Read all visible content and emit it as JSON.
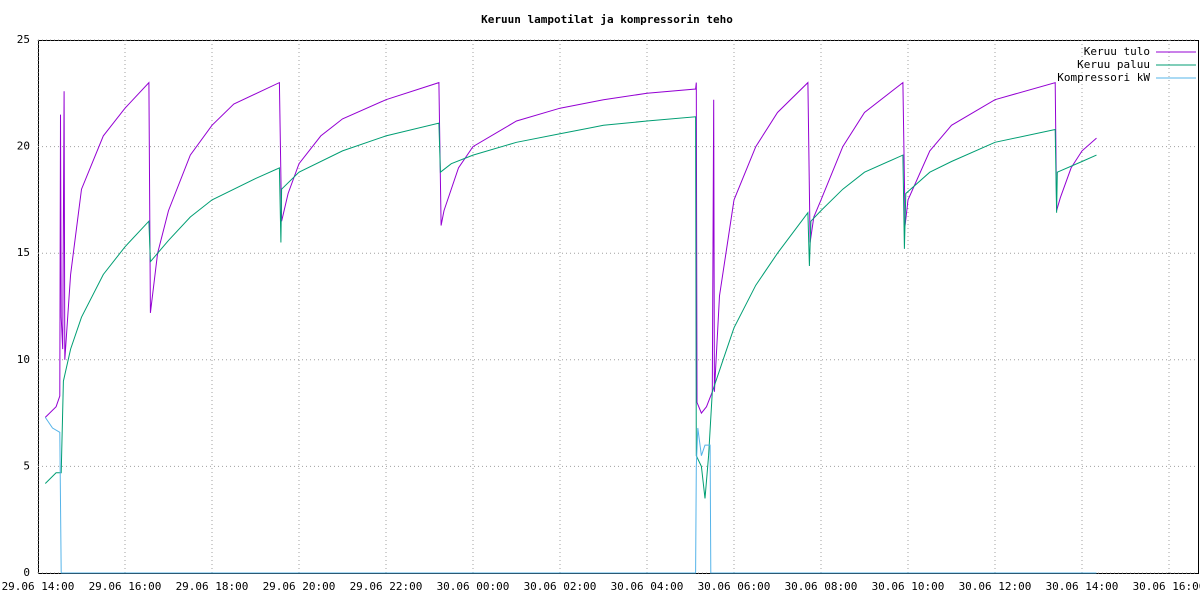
{
  "chart_data": {
    "type": "line",
    "title": "Keruun lampotilat ja kompressorin teho",
    "xlim": [
      "29.06 14:00",
      "30.06 16:40"
    ],
    "xticks": [
      "29.06 14:00",
      "29.06 16:00",
      "29.06 18:00",
      "29.06 20:00",
      "29.06 22:00",
      "30.06 00:00",
      "30.06 02:00",
      "30.06 04:00",
      "30.06 06:00",
      "30.06 08:00",
      "30.06 10:00",
      "30.06 12:00",
      "30.06 14:00",
      "30.06 16:00"
    ],
    "ylim": [
      0,
      25
    ],
    "yticks": [
      0,
      5,
      10,
      15,
      20,
      25
    ],
    "grid": true,
    "legend": "top-right",
    "series": [
      {
        "name": "Keruu tulo",
        "color": "#9400d3",
        "x": [
          "29.06 14:10",
          "29.06 14:25",
          "29.06 14:30",
          "29.06 14:31",
          "29.06 14:32",
          "29.06 14:34",
          "29.06 14:36",
          "29.06 14:37",
          "29.06 14:45",
          "29.06 15:00",
          "29.06 15:30",
          "29.06 16:00",
          "29.06 16:33",
          "29.06 16:35",
          "29.06 16:45",
          "29.06 17:00",
          "29.06 17:30",
          "29.06 18:00",
          "29.06 18:30",
          "29.06 19:33",
          "29.06 19:36",
          "29.06 19:45",
          "29.06 20:00",
          "29.06 20:30",
          "29.06 21:00",
          "29.06 22:00",
          "29.06 23:13",
          "29.06 23:16",
          "29.06 23:20",
          "29.06 23:40",
          "30.06 00:00",
          "30.06 01:00",
          "30.06 02:00",
          "30.06 03:00",
          "30.06 04:00",
          "30.06 05:07",
          "30.06 05:08",
          "30.06 05:09",
          "30.06 05:15",
          "30.06 05:22",
          "30.06 05:30",
          "30.06 05:32",
          "30.06 05:33",
          "30.06 05:40",
          "30.06 06:00",
          "30.06 06:30",
          "30.06 07:00",
          "30.06 07:42",
          "30.06 07:45",
          "30.06 07:50",
          "30.06 08:00",
          "30.06 08:30",
          "30.06 09:00",
          "30.06 09:53",
          "30.06 09:56",
          "30.06 10:00",
          "30.06 10:30",
          "30.06 11:00",
          "30.06 12:00",
          "30.06 13:23",
          "30.06 13:25",
          "30.06 13:30",
          "30.06 13:45",
          "30.06 14:00",
          "30.06 14:20"
        ],
        "values": [
          7.3,
          7.8,
          8.3,
          21.5,
          12,
          10.5,
          22.6,
          10,
          14,
          18,
          20.5,
          21.8,
          23,
          12.2,
          15,
          17,
          19.6,
          21,
          22,
          23,
          16.5,
          17.8,
          19.2,
          20.5,
          21.3,
          22.2,
          23,
          16.3,
          17,
          19,
          20,
          21.2,
          21.8,
          22.2,
          22.5,
          22.7,
          23,
          8,
          7.5,
          7.8,
          8.5,
          22.2,
          8.5,
          13,
          17.5,
          20,
          21.6,
          23,
          15.5,
          16.7,
          17.5,
          20,
          21.6,
          23,
          16.3,
          17.5,
          19.8,
          21,
          22.2,
          23,
          17,
          17.6,
          19,
          19.8,
          20.4
        ]
      },
      {
        "name": "Keruu paluu",
        "color": "#009e73",
        "x": [
          "29.06 14:10",
          "29.06 14:25",
          "29.06 14:32",
          "29.06 14:35",
          "29.06 14:45",
          "29.06 15:00",
          "29.06 15:30",
          "29.06 16:00",
          "29.06 16:33",
          "29.06 16:35",
          "29.06 17:00",
          "29.06 17:30",
          "29.06 18:00",
          "29.06 19:00",
          "29.06 19:33",
          "29.06 19:35",
          "29.06 19:36",
          "29.06 20:00",
          "29.06 21:00",
          "29.06 22:00",
          "29.06 23:13",
          "29.06 23:15",
          "29.06 23:30",
          "30.06 00:00",
          "30.06 01:00",
          "30.06 02:00",
          "30.06 03:00",
          "30.06 04:00",
          "30.06 05:07",
          "30.06 05:08",
          "30.06 05:15",
          "30.06 05:20",
          "30.06 05:25",
          "30.06 05:30",
          "30.06 05:45",
          "30.06 06:00",
          "30.06 06:30",
          "30.06 07:00",
          "30.06 07:42",
          "30.06 07:44",
          "30.06 07:46",
          "30.06 08:00",
          "30.06 08:30",
          "30.06 09:00",
          "30.06 09:53",
          "30.06 09:55",
          "30.06 09:57",
          "30.06 10:30",
          "30.06 11:00",
          "30.06 12:00",
          "30.06 13:23",
          "30.06 13:25",
          "30.06 13:26",
          "30.06 14:00",
          "30.06 14:20"
        ],
        "values": [
          4.2,
          4.7,
          4.7,
          9,
          10.5,
          12,
          14,
          15.3,
          16.5,
          14.6,
          15.6,
          16.7,
          17.5,
          18.5,
          19,
          15.5,
          18,
          18.8,
          19.8,
          20.5,
          21.1,
          18.8,
          19.2,
          19.6,
          20.2,
          20.6,
          21,
          21.2,
          21.4,
          5.5,
          5,
          3.5,
          5.5,
          8.5,
          10,
          11.5,
          13.5,
          15,
          16.9,
          14.4,
          16.5,
          17,
          18,
          18.8,
          19.6,
          15.2,
          17.8,
          18.8,
          19.3,
          20.2,
          20.8,
          16.9,
          18.8,
          19.3,
          19.6
        ]
      },
      {
        "name": "Kompressori kW",
        "color": "#56b4e9",
        "x": [
          "29.06 14:10",
          "29.06 14:20",
          "29.06 14:30",
          "29.06 14:32",
          "30.06 05:07",
          "30.06 05:08",
          "30.06 05:10",
          "30.06 05:15",
          "30.06 05:20",
          "30.06 05:27",
          "30.06 05:28",
          "30.06 14:20"
        ],
        "values": [
          7.3,
          6.8,
          6.6,
          0,
          0,
          5,
          6.8,
          5.5,
          6,
          6,
          0,
          0
        ]
      }
    ]
  }
}
